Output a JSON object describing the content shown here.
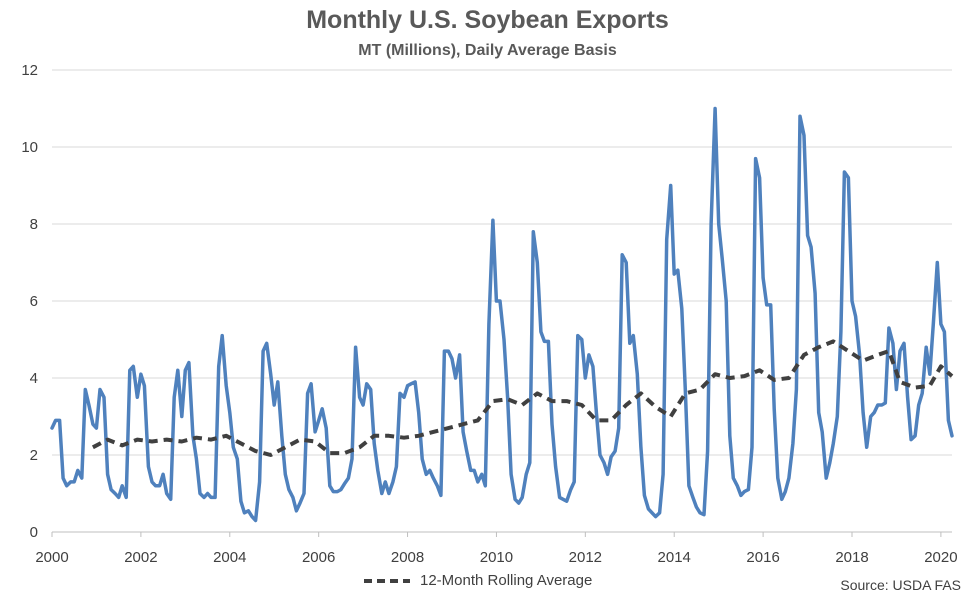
{
  "chart_data": {
    "type": "line",
    "title": "Monthly U.S. Soybean Exports",
    "subtitle": "MT (Millions), Daily Average Basis",
    "xlabel": "",
    "ylabel": "",
    "xlim": [
      2000,
      2020.25
    ],
    "ylim": [
      0,
      12
    ],
    "y_ticks": [
      "0",
      "2",
      "4",
      "6",
      "8",
      "10",
      "12"
    ],
    "x_ticks": [
      "2000",
      "2002",
      "2004",
      "2006",
      "2008",
      "2010",
      "2012",
      "2014",
      "2016",
      "2018",
      "2020"
    ],
    "grid": "horizontal",
    "legend_position": "bottom",
    "source": "Source: USDA FAS",
    "colors": {
      "monthly": "#4F81BD",
      "rolling": "#404040"
    },
    "series": [
      {
        "key": "monthly",
        "style": "solid",
        "points": [
          [
            2000.0,
            2.7
          ],
          [
            2000.08,
            2.9
          ],
          [
            2000.17,
            2.9
          ],
          [
            2000.25,
            1.4
          ],
          [
            2000.33,
            1.2
          ],
          [
            2000.42,
            1.3
          ],
          [
            2000.5,
            1.3
          ],
          [
            2000.58,
            1.6
          ],
          [
            2000.67,
            1.4
          ],
          [
            2000.75,
            3.7
          ],
          [
            2000.83,
            3.3
          ],
          [
            2000.92,
            2.8
          ],
          [
            2001.0,
            2.7
          ],
          [
            2001.08,
            3.7
          ],
          [
            2001.17,
            3.5
          ],
          [
            2001.25,
            1.5
          ],
          [
            2001.33,
            1.1
          ],
          [
            2001.42,
            1.0
          ],
          [
            2001.5,
            0.9
          ],
          [
            2001.58,
            1.2
          ],
          [
            2001.67,
            0.9
          ],
          [
            2001.75,
            4.2
          ],
          [
            2001.83,
            4.3
          ],
          [
            2001.92,
            3.5
          ],
          [
            2002.0,
            4.1
          ],
          [
            2002.08,
            3.8
          ],
          [
            2002.17,
            1.7
          ],
          [
            2002.25,
            1.3
          ],
          [
            2002.33,
            1.2
          ],
          [
            2002.42,
            1.2
          ],
          [
            2002.5,
            1.5
          ],
          [
            2002.58,
            1.0
          ],
          [
            2002.67,
            0.85
          ],
          [
            2002.75,
            3.5
          ],
          [
            2002.83,
            4.2
          ],
          [
            2002.92,
            3.0
          ],
          [
            2003.0,
            4.2
          ],
          [
            2003.08,
            4.4
          ],
          [
            2003.17,
            2.5
          ],
          [
            2003.25,
            1.9
          ],
          [
            2003.33,
            1.0
          ],
          [
            2003.42,
            0.9
          ],
          [
            2003.5,
            1.0
          ],
          [
            2003.58,
            0.9
          ],
          [
            2003.67,
            0.9
          ],
          [
            2003.75,
            4.3
          ],
          [
            2003.83,
            5.1
          ],
          [
            2003.92,
            3.8
          ],
          [
            2004.0,
            3.1
          ],
          [
            2004.08,
            2.2
          ],
          [
            2004.17,
            1.9
          ],
          [
            2004.25,
            0.8
          ],
          [
            2004.33,
            0.5
          ],
          [
            2004.42,
            0.55
          ],
          [
            2004.5,
            0.4
          ],
          [
            2004.58,
            0.3
          ],
          [
            2004.67,
            1.3
          ],
          [
            2004.75,
            4.7
          ],
          [
            2004.83,
            4.9
          ],
          [
            2004.92,
            4.1
          ],
          [
            2005.0,
            3.3
          ],
          [
            2005.08,
            3.9
          ],
          [
            2005.17,
            2.5
          ],
          [
            2005.25,
            1.5
          ],
          [
            2005.33,
            1.1
          ],
          [
            2005.42,
            0.9
          ],
          [
            2005.5,
            0.55
          ],
          [
            2005.58,
            0.75
          ],
          [
            2005.67,
            1.0
          ],
          [
            2005.75,
            3.6
          ],
          [
            2005.83,
            3.85
          ],
          [
            2005.92,
            2.6
          ],
          [
            2006.0,
            2.9
          ],
          [
            2006.08,
            3.2
          ],
          [
            2006.17,
            2.7
          ],
          [
            2006.25,
            1.2
          ],
          [
            2006.33,
            1.05
          ],
          [
            2006.42,
            1.05
          ],
          [
            2006.5,
            1.1
          ],
          [
            2006.58,
            1.25
          ],
          [
            2006.67,
            1.4
          ],
          [
            2006.75,
            1.9
          ],
          [
            2006.83,
            4.8
          ],
          [
            2006.92,
            3.5
          ],
          [
            2007.0,
            3.3
          ],
          [
            2007.08,
            3.85
          ],
          [
            2007.17,
            3.7
          ],
          [
            2007.25,
            2.3
          ],
          [
            2007.33,
            1.6
          ],
          [
            2007.42,
            1.0
          ],
          [
            2007.5,
            1.3
          ],
          [
            2007.58,
            1.0
          ],
          [
            2007.67,
            1.3
          ],
          [
            2007.75,
            1.7
          ],
          [
            2007.83,
            3.6
          ],
          [
            2007.92,
            3.5
          ],
          [
            2008.0,
            3.8
          ],
          [
            2008.08,
            3.85
          ],
          [
            2008.17,
            3.9
          ],
          [
            2008.25,
            3.1
          ],
          [
            2008.33,
            1.9
          ],
          [
            2008.42,
            1.5
          ],
          [
            2008.5,
            1.6
          ],
          [
            2008.58,
            1.4
          ],
          [
            2008.67,
            1.2
          ],
          [
            2008.75,
            0.95
          ],
          [
            2008.83,
            4.7
          ],
          [
            2008.92,
            4.7
          ],
          [
            2009.0,
            4.5
          ],
          [
            2009.08,
            4.0
          ],
          [
            2009.17,
            4.6
          ],
          [
            2009.25,
            2.6
          ],
          [
            2009.33,
            2.1
          ],
          [
            2009.42,
            1.6
          ],
          [
            2009.5,
            1.6
          ],
          [
            2009.58,
            1.3
          ],
          [
            2009.67,
            1.5
          ],
          [
            2009.75,
            1.2
          ],
          [
            2009.83,
            5.4
          ],
          [
            2009.92,
            8.1
          ],
          [
            2010.0,
            6.0
          ],
          [
            2010.08,
            6.0
          ],
          [
            2010.17,
            5.0
          ],
          [
            2010.25,
            3.5
          ],
          [
            2010.33,
            1.5
          ],
          [
            2010.42,
            0.85
          ],
          [
            2010.5,
            0.75
          ],
          [
            2010.58,
            0.9
          ],
          [
            2010.67,
            1.5
          ],
          [
            2010.75,
            1.8
          ],
          [
            2010.83,
            7.8
          ],
          [
            2010.92,
            7.0
          ],
          [
            2011.0,
            5.2
          ],
          [
            2011.08,
            4.95
          ],
          [
            2011.17,
            4.95
          ],
          [
            2011.25,
            2.8
          ],
          [
            2011.33,
            1.7
          ],
          [
            2011.42,
            0.9
          ],
          [
            2011.5,
            0.85
          ],
          [
            2011.58,
            0.8
          ],
          [
            2011.67,
            1.1
          ],
          [
            2011.75,
            1.3
          ],
          [
            2011.83,
            5.1
          ],
          [
            2011.92,
            5.0
          ],
          [
            2012.0,
            4.0
          ],
          [
            2012.08,
            4.6
          ],
          [
            2012.17,
            4.3
          ],
          [
            2012.25,
            3.1
          ],
          [
            2012.33,
            2.0
          ],
          [
            2012.42,
            1.8
          ],
          [
            2012.5,
            1.5
          ],
          [
            2012.58,
            1.95
          ],
          [
            2012.67,
            2.1
          ],
          [
            2012.75,
            2.7
          ],
          [
            2012.83,
            7.2
          ],
          [
            2012.92,
            7.0
          ],
          [
            2013.0,
            4.9
          ],
          [
            2013.08,
            5.1
          ],
          [
            2013.17,
            4.1
          ],
          [
            2013.25,
            2.2
          ],
          [
            2013.33,
            0.95
          ],
          [
            2013.42,
            0.6
          ],
          [
            2013.5,
            0.5
          ],
          [
            2013.58,
            0.4
          ],
          [
            2013.67,
            0.5
          ],
          [
            2013.75,
            1.5
          ],
          [
            2013.83,
            7.6
          ],
          [
            2013.92,
            9.0
          ],
          [
            2014.0,
            6.7
          ],
          [
            2014.08,
            6.8
          ],
          [
            2014.17,
            5.8
          ],
          [
            2014.25,
            3.7
          ],
          [
            2014.33,
            1.2
          ],
          [
            2014.42,
            0.9
          ],
          [
            2014.5,
            0.65
          ],
          [
            2014.58,
            0.5
          ],
          [
            2014.67,
            0.45
          ],
          [
            2014.75,
            2.1
          ],
          [
            2014.83,
            8.0
          ],
          [
            2014.92,
            11.0
          ],
          [
            2015.0,
            8.0
          ],
          [
            2015.08,
            7.1
          ],
          [
            2015.17,
            6.0
          ],
          [
            2015.25,
            2.5
          ],
          [
            2015.33,
            1.4
          ],
          [
            2015.42,
            1.2
          ],
          [
            2015.5,
            0.95
          ],
          [
            2015.58,
            1.05
          ],
          [
            2015.67,
            1.1
          ],
          [
            2015.75,
            2.2
          ],
          [
            2015.83,
            9.7
          ],
          [
            2015.92,
            9.2
          ],
          [
            2016.0,
            6.6
          ],
          [
            2016.08,
            5.9
          ],
          [
            2016.17,
            5.9
          ],
          [
            2016.25,
            3.2
          ],
          [
            2016.33,
            1.4
          ],
          [
            2016.42,
            0.85
          ],
          [
            2016.5,
            1.05
          ],
          [
            2016.58,
            1.4
          ],
          [
            2016.67,
            2.3
          ],
          [
            2016.75,
            3.7
          ],
          [
            2016.83,
            10.8
          ],
          [
            2016.92,
            10.3
          ],
          [
            2017.0,
            7.7
          ],
          [
            2017.08,
            7.4
          ],
          [
            2017.17,
            6.2
          ],
          [
            2017.25,
            3.1
          ],
          [
            2017.33,
            2.6
          ],
          [
            2017.42,
            1.4
          ],
          [
            2017.5,
            1.8
          ],
          [
            2017.58,
            2.3
          ],
          [
            2017.67,
            3.0
          ],
          [
            2017.75,
            5.2
          ],
          [
            2017.83,
            9.35
          ],
          [
            2017.92,
            9.2
          ],
          [
            2018.0,
            6.0
          ],
          [
            2018.08,
            5.6
          ],
          [
            2018.17,
            4.6
          ],
          [
            2018.25,
            3.1
          ],
          [
            2018.33,
            2.2
          ],
          [
            2018.42,
            3.0
          ],
          [
            2018.5,
            3.1
          ],
          [
            2018.58,
            3.3
          ],
          [
            2018.67,
            3.3
          ],
          [
            2018.75,
            3.35
          ],
          [
            2018.83,
            5.3
          ],
          [
            2018.92,
            4.9
          ],
          [
            2019.0,
            3.7
          ],
          [
            2019.08,
            4.7
          ],
          [
            2019.17,
            4.9
          ],
          [
            2019.25,
            3.5
          ],
          [
            2019.33,
            2.4
          ],
          [
            2019.42,
            2.5
          ],
          [
            2019.5,
            3.3
          ],
          [
            2019.58,
            3.6
          ],
          [
            2019.67,
            4.8
          ],
          [
            2019.75,
            4.1
          ],
          [
            2019.83,
            5.4
          ],
          [
            2019.92,
            7.0
          ],
          [
            2020.0,
            5.4
          ],
          [
            2020.08,
            5.2
          ],
          [
            2020.17,
            2.9
          ],
          [
            2020.25,
            2.5
          ]
        ]
      },
      {
        "key": "rolling",
        "name": "12-Month Rolling Average",
        "style": "dashed",
        "points": [
          [
            2000.92,
            2.2
          ],
          [
            2001.25,
            2.4
          ],
          [
            2001.58,
            2.25
          ],
          [
            2001.92,
            2.4
          ],
          [
            2002.25,
            2.35
          ],
          [
            2002.58,
            2.4
          ],
          [
            2002.92,
            2.35
          ],
          [
            2003.25,
            2.45
          ],
          [
            2003.58,
            2.4
          ],
          [
            2003.92,
            2.5
          ],
          [
            2004.25,
            2.3
          ],
          [
            2004.58,
            2.1
          ],
          [
            2004.92,
            2.0
          ],
          [
            2005.25,
            2.2
          ],
          [
            2005.58,
            2.4
          ],
          [
            2005.92,
            2.35
          ],
          [
            2006.25,
            2.05
          ],
          [
            2006.58,
            2.05
          ],
          [
            2006.92,
            2.2
          ],
          [
            2007.25,
            2.5
          ],
          [
            2007.58,
            2.5
          ],
          [
            2007.92,
            2.45
          ],
          [
            2008.25,
            2.5
          ],
          [
            2008.58,
            2.6
          ],
          [
            2008.92,
            2.7
          ],
          [
            2009.25,
            2.8
          ],
          [
            2009.58,
            2.9
          ],
          [
            2009.92,
            3.4
          ],
          [
            2010.25,
            3.45
          ],
          [
            2010.58,
            3.3
          ],
          [
            2010.92,
            3.6
          ],
          [
            2011.25,
            3.4
          ],
          [
            2011.58,
            3.4
          ],
          [
            2011.92,
            3.3
          ],
          [
            2012.25,
            2.9
          ],
          [
            2012.58,
            2.9
          ],
          [
            2012.92,
            3.3
          ],
          [
            2013.25,
            3.6
          ],
          [
            2013.58,
            3.25
          ],
          [
            2013.92,
            3.0
          ],
          [
            2014.25,
            3.6
          ],
          [
            2014.58,
            3.7
          ],
          [
            2014.92,
            4.1
          ],
          [
            2015.25,
            4.0
          ],
          [
            2015.58,
            4.05
          ],
          [
            2015.92,
            4.2
          ],
          [
            2016.25,
            3.95
          ],
          [
            2016.58,
            4.0
          ],
          [
            2016.92,
            4.6
          ],
          [
            2017.25,
            4.8
          ],
          [
            2017.58,
            4.95
          ],
          [
            2017.92,
            4.7
          ],
          [
            2018.25,
            4.45
          ],
          [
            2018.58,
            4.6
          ],
          [
            2018.83,
            4.7
          ],
          [
            2019.08,
            3.9
          ],
          [
            2019.42,
            3.75
          ],
          [
            2019.75,
            3.8
          ],
          [
            2020.0,
            4.3
          ],
          [
            2020.25,
            4.05
          ]
        ]
      }
    ]
  }
}
